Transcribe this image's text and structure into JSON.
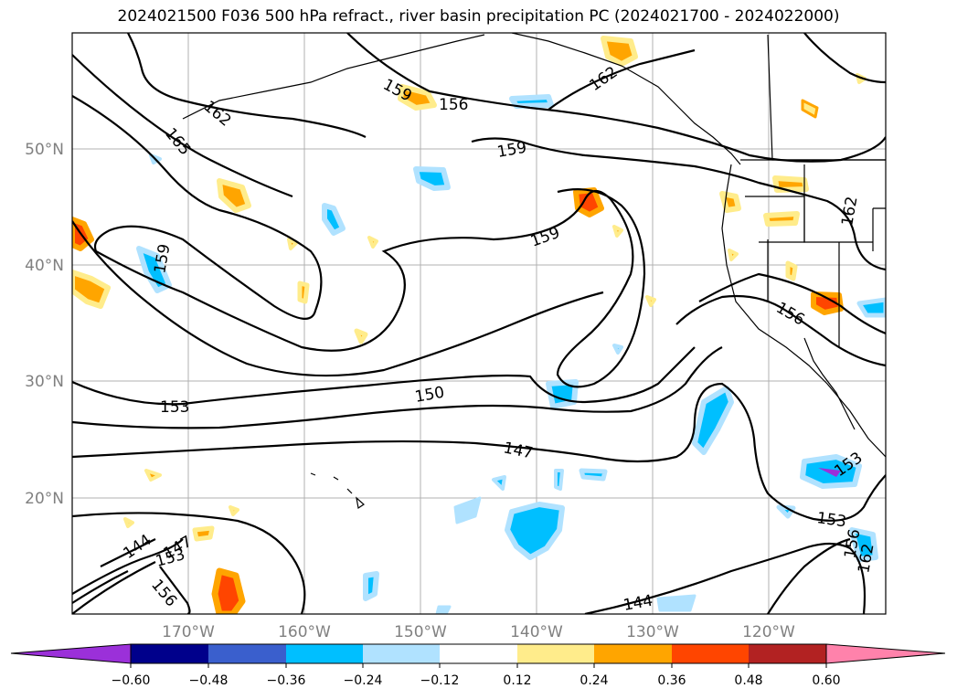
{
  "title": "2024021500 F036 500 hPa refract., river basin precipitation PC (2024021700 - 2024022000)",
  "lat_labels": [
    "50°N",
    "40°N",
    "30°N",
    "20°N"
  ],
  "lon_labels": [
    "170°W",
    "160°W",
    "150°W",
    "140°W",
    "130°W",
    "120°W"
  ],
  "contour_labels": [
    "159",
    "156",
    "162",
    "165",
    "159",
    "159",
    "159",
    "153",
    "150",
    "147",
    "144",
    "144",
    "147",
    "153",
    "156",
    "153",
    "156",
    "162",
    "153",
    "156",
    "162",
    "162"
  ],
  "colorbar": {
    "colors": [
      "#9b30d9",
      "#00008b",
      "#3a5fcd",
      "#00bfff",
      "#b0e2ff",
      "#ffffff",
      "#ffec8b",
      "#ffa500",
      "#ff4500",
      "#b22222",
      "#ff82ab"
    ],
    "ticks": [
      "−0.60",
      "−0.48",
      "−0.36",
      "−0.24",
      "−0.12",
      "0.12",
      "0.24",
      "0.36",
      "0.48",
      "0.60"
    ]
  }
}
